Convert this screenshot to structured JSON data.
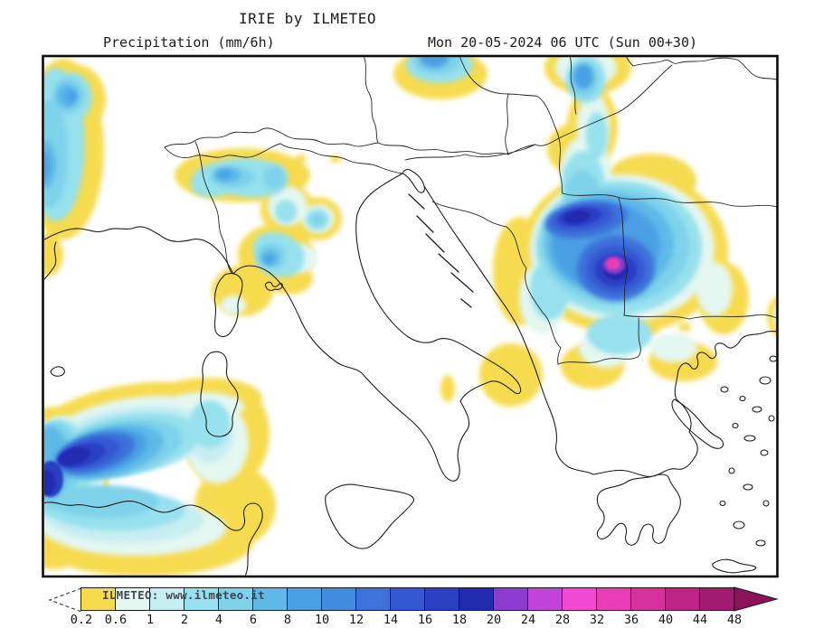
{
  "header": {
    "title": "IRIE by ILMETEO",
    "left_label": "Precipitation (mm/6h)",
    "right_label": "Mon 20-05-2024 06 UTC (Sun 00+30)"
  },
  "map": {
    "kind": "precipitation forecast contour map, Italy and central Mediterranean / Balkans",
    "precipitation_cells": [
      {
        "area": "western Mediterranean between Balearics, Algeria and Sardinia",
        "peak_mm_per_6h": "16-18"
      },
      {
        "area": "Serbia / central Balkans",
        "peak_mm_per_6h": "24-28"
      },
      {
        "area": "Alps, Po valley and Liguria-Tuscany",
        "peak_mm_per_6h": "6-10"
      },
      {
        "area": "Bay of Biscay at left map edge",
        "peak_mm_per_6h": "8-10"
      },
      {
        "area": "top edge over Slovakia",
        "peak_mm_per_6h": "8-10"
      },
      {
        "area": "top edge over western Ukraine, streak down to Balkans",
        "peak_mm_per_6h": "8-10"
      },
      {
        "area": "light marks over Calabria and northern Greece",
        "peak_mm_per_6h": "0.2-0.6"
      }
    ]
  },
  "colorbar": {
    "branding": "ILMETEO: www.ilmeteo.it",
    "unit_values": [
      "0.2",
      "0.6",
      "1",
      "2",
      "4",
      "6",
      "8",
      "10",
      "12",
      "14",
      "16",
      "18",
      "20",
      "24",
      "28",
      "32",
      "36",
      "40",
      "44",
      "48"
    ],
    "segment_colors": [
      "#F6DB4F",
      "#E4F7F1",
      "#C7EEF2",
      "#96E1ED",
      "#7ED2EA",
      "#5FB9E8",
      "#4BA0E4",
      "#418CDF",
      "#3C72DA",
      "#3557D1",
      "#2C40C4",
      "#212CB0",
      "#8A3CCE",
      "#C243DA",
      "#F348D2",
      "#E93CB6",
      "#D6309C",
      "#BD2486",
      "#A21B6E"
    ],
    "overflow_arrow_color": "#8C135A",
    "underflow_style": "dashed white arrow (below 0.2)"
  }
}
